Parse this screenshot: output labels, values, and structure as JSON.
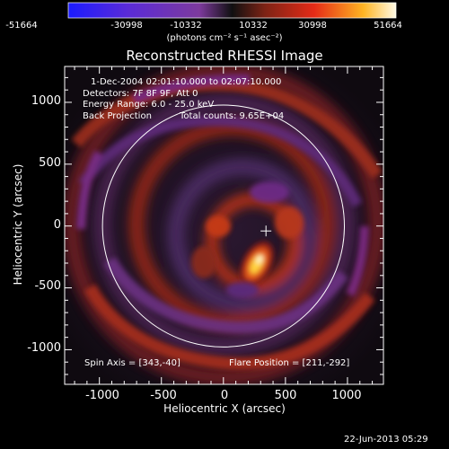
{
  "colorbar": {
    "ticks": [
      "-51664",
      "-30998",
      "-10332",
      "10332",
      "30998",
      "51664"
    ],
    "min": -51664,
    "max": 51664,
    "units": "(photons cm⁻² s⁻¹ asec⁻²)"
  },
  "plot": {
    "title": "Reconstructed RHESSI Image",
    "xlabel": "Heliocentric X (arcsec)",
    "ylabel": "Heliocentric Y (arcsec)",
    "xlim": [
      -1280,
      1290
    ],
    "ylim": [
      -1280,
      1290
    ],
    "xticks": [
      "-1000",
      "-500",
      "0",
      "500",
      "1000"
    ],
    "yticks": [
      "1000",
      "500",
      "0",
      "-500",
      "-1000"
    ],
    "info_lines": [
      "1-Dec-2004 02:01:10.000 to 02:07:10.000",
      "Detectors: 7F 8F 9F, Att 0",
      "Energy Range: 6.0 - 25.0 keV"
    ],
    "back_projection": "Back Projection",
    "total_counts": "Total counts: 9.65E+04",
    "spin_axis": "Spin Axis = [343,-40]",
    "flare_position": "Flare Position = [211,-292]",
    "solar_radius_arcsec": 975,
    "spin_axis_marker": [
      343,
      -40
    ]
  },
  "footer": {
    "timestamp": "22-Jun-2013 05:29"
  }
}
